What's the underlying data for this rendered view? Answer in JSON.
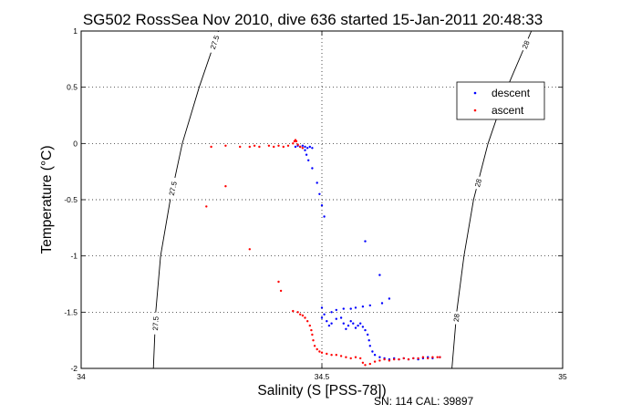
{
  "chart_data": {
    "type": "scatter",
    "title": "SG502 RossSea Nov 2010, dive 636 started 15-Jan-2011 20:48:33",
    "xlabel": "Salinity (S [PSS-78])",
    "ylabel": "Temperature (°C)",
    "xlim": [
      34,
      35
    ],
    "ylim": [
      -2,
      1
    ],
    "x_ticks": [
      {
        "value": 34,
        "label": "34"
      },
      {
        "value": 34.5,
        "label": "34.5"
      },
      {
        "value": 35,
        "label": "35"
      }
    ],
    "y_ticks": [
      {
        "value": -2,
        "label": "-2"
      },
      {
        "value": -1.5,
        "label": "-1.5"
      },
      {
        "value": -1,
        "label": "-1"
      },
      {
        "value": -0.5,
        "label": "-0.5"
      },
      {
        "value": 0,
        "label": "0"
      },
      {
        "value": 0.5,
        "label": "0.5"
      },
      {
        "value": 1,
        "label": "1"
      }
    ],
    "grid": "dotted",
    "legend_position": "top-right",
    "density_contours": [
      {
        "label": "27.5",
        "points": [
          [
            34.285,
            1.0
          ],
          [
            34.245,
            0.5
          ],
          [
            34.21,
            0.0
          ],
          [
            34.185,
            -0.5
          ],
          [
            34.165,
            -1.0
          ],
          [
            34.155,
            -1.5
          ],
          [
            34.15,
            -2.0
          ]
        ]
      },
      {
        "label": "28",
        "points": [
          [
            34.935,
            1.0
          ],
          [
            34.885,
            0.5
          ],
          [
            34.845,
            0.0
          ],
          [
            34.815,
            -0.5
          ],
          [
            34.795,
            -1.0
          ],
          [
            34.78,
            -1.5
          ],
          [
            34.77,
            -2.0
          ]
        ]
      }
    ],
    "contour_labels": [
      {
        "text": "27.5",
        "contour": 0,
        "at": 0.9
      },
      {
        "text": "27.5",
        "contour": 0,
        "at": -0.4
      },
      {
        "text": "27.5",
        "contour": 0,
        "at": -1.6
      },
      {
        "text": "28",
        "contour": 1,
        "at": 0.88
      },
      {
        "text": "28",
        "contour": 1,
        "at": -0.35
      },
      {
        "text": "28",
        "contour": 1,
        "at": -1.55
      }
    ],
    "series": [
      {
        "name": "descent",
        "color": "#0000ff",
        "points": [
          [
            34.445,
            -0.03
          ],
          [
            34.45,
            -0.02
          ],
          [
            34.455,
            -0.03
          ],
          [
            34.46,
            -0.02
          ],
          [
            34.465,
            -0.03
          ],
          [
            34.47,
            -0.04
          ],
          [
            34.475,
            -0.03
          ],
          [
            34.48,
            -0.04
          ],
          [
            34.465,
            -0.06
          ],
          [
            34.468,
            -0.1
          ],
          [
            34.472,
            -0.15
          ],
          [
            34.48,
            -0.22
          ],
          [
            34.49,
            -0.35
          ],
          [
            34.495,
            -0.45
          ],
          [
            34.5,
            -0.55
          ],
          [
            34.505,
            -0.65
          ],
          [
            34.59,
            -0.87
          ],
          [
            34.62,
            -1.17
          ],
          [
            34.64,
            -1.38
          ],
          [
            34.625,
            -1.42
          ],
          [
            34.6,
            -1.44
          ],
          [
            34.585,
            -1.45
          ],
          [
            34.57,
            -1.46
          ],
          [
            34.56,
            -1.47
          ],
          [
            34.545,
            -1.47
          ],
          [
            34.53,
            -1.48
          ],
          [
            34.52,
            -1.5
          ],
          [
            34.505,
            -1.52
          ],
          [
            34.5,
            -1.46
          ],
          [
            34.5,
            -1.55
          ],
          [
            34.51,
            -1.58
          ],
          [
            34.515,
            -1.62
          ],
          [
            34.52,
            -1.6
          ],
          [
            34.53,
            -1.56
          ],
          [
            34.54,
            -1.55
          ],
          [
            34.545,
            -1.6
          ],
          [
            34.55,
            -1.65
          ],
          [
            34.555,
            -1.62
          ],
          [
            34.56,
            -1.58
          ],
          [
            34.565,
            -1.6
          ],
          [
            34.57,
            -1.64
          ],
          [
            34.575,
            -1.62
          ],
          [
            34.58,
            -1.6
          ],
          [
            34.585,
            -1.63
          ],
          [
            34.59,
            -1.66
          ],
          [
            34.595,
            -1.7
          ],
          [
            34.598,
            -1.75
          ],
          [
            34.6,
            -1.8
          ],
          [
            34.605,
            -1.85
          ],
          [
            34.61,
            -1.88
          ],
          [
            34.62,
            -1.9
          ],
          [
            34.63,
            -1.91
          ],
          [
            34.64,
            -1.92
          ],
          [
            34.65,
            -1.91
          ],
          [
            34.66,
            -1.92
          ],
          [
            34.67,
            -1.91
          ],
          [
            34.68,
            -1.92
          ],
          [
            34.69,
            -1.91
          ],
          [
            34.7,
            -1.92
          ],
          [
            34.71,
            -1.91
          ],
          [
            34.72,
            -1.9
          ],
          [
            34.73,
            -1.91
          ],
          [
            34.745,
            -1.9
          ]
        ]
      },
      {
        "name": "ascent",
        "color": "#ff0000",
        "points": [
          [
            34.27,
            -0.03
          ],
          [
            34.3,
            -0.02
          ],
          [
            34.33,
            -0.03
          ],
          [
            34.35,
            -0.03
          ],
          [
            34.36,
            -0.02
          ],
          [
            34.37,
            -0.03
          ],
          [
            34.39,
            -0.02
          ],
          [
            34.4,
            -0.03
          ],
          [
            34.41,
            -0.02
          ],
          [
            34.42,
            -0.03
          ],
          [
            34.43,
            -0.02
          ],
          [
            34.44,
            0.0
          ],
          [
            34.443,
            0.02
          ],
          [
            34.445,
            0.03
          ],
          [
            34.447,
            0.02
          ],
          [
            34.45,
            -0.01
          ],
          [
            34.455,
            -0.03
          ],
          [
            34.46,
            -0.04
          ],
          [
            34.3,
            -0.38
          ],
          [
            34.26,
            -0.56
          ],
          [
            34.35,
            -0.94
          ],
          [
            34.41,
            -1.23
          ],
          [
            34.415,
            -1.31
          ],
          [
            34.44,
            -1.49
          ],
          [
            34.45,
            -1.5
          ],
          [
            34.455,
            -1.52
          ],
          [
            34.46,
            -1.53
          ],
          [
            34.465,
            -1.55
          ],
          [
            34.47,
            -1.58
          ],
          [
            34.475,
            -1.62
          ],
          [
            34.478,
            -1.66
          ],
          [
            34.48,
            -1.7
          ],
          [
            34.482,
            -1.75
          ],
          [
            34.485,
            -1.8
          ],
          [
            34.49,
            -1.83
          ],
          [
            34.495,
            -1.85
          ],
          [
            34.5,
            -1.86
          ],
          [
            34.51,
            -1.87
          ],
          [
            34.52,
            -1.88
          ],
          [
            34.53,
            -1.88
          ],
          [
            34.54,
            -1.89
          ],
          [
            34.55,
            -1.9
          ],
          [
            34.56,
            -1.91
          ],
          [
            34.57,
            -1.9
          ],
          [
            34.58,
            -1.91
          ],
          [
            34.585,
            -1.95
          ],
          [
            34.59,
            -1.97
          ],
          [
            34.6,
            -1.96
          ],
          [
            34.61,
            -1.94
          ],
          [
            34.62,
            -1.93
          ],
          [
            34.63,
            -1.92
          ],
          [
            34.64,
            -1.93
          ],
          [
            34.65,
            -1.92
          ],
          [
            34.66,
            -1.92
          ],
          [
            34.67,
            -1.91
          ],
          [
            34.68,
            -1.92
          ],
          [
            34.69,
            -1.91
          ],
          [
            34.7,
            -1.91
          ],
          [
            34.71,
            -1.9
          ],
          [
            34.72,
            -1.91
          ],
          [
            34.73,
            -1.9
          ],
          [
            34.74,
            -1.9
          ],
          [
            34.745,
            -1.9
          ]
        ]
      }
    ]
  },
  "caption": "SN: 114  CAL: 39897"
}
